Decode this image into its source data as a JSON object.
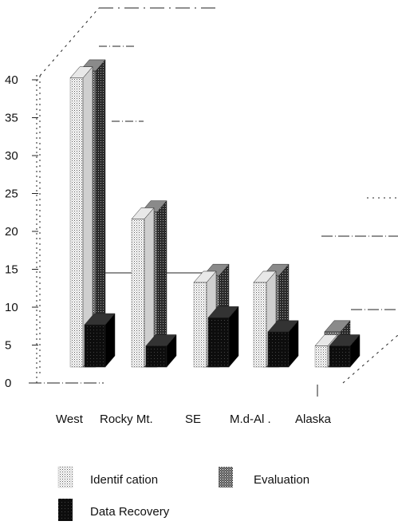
{
  "chart_data": {
    "type": "bar",
    "style": "3d-grouped-bar",
    "categories": [
      "West",
      "Rocky Mt.",
      "SE",
      "M.d-Al .",
      "Alaska"
    ],
    "series": [
      {
        "name": "Identif cation",
        "values": [
          41,
          21,
          12,
          12,
          3
        ],
        "pattern": "light-dotted"
      },
      {
        "name": "Evaluation",
        "values": [
          42,
          22,
          13,
          13,
          5
        ],
        "pattern": "medium-dotted"
      },
      {
        "name": "Data Recovery",
        "values": [
          6,
          3,
          7,
          5,
          3
        ],
        "pattern": "dark-solid"
      }
    ],
    "y_ticks": [
      "0",
      "5",
      "10",
      "15",
      "20",
      "25",
      "30",
      "35",
      "40"
    ],
    "ylim": [
      0,
      40
    ],
    "grid": false,
    "legend_position": "bottom"
  },
  "colors": {
    "axis": "#111111",
    "light": "#d8d8d8",
    "medium": "#7a7a7a",
    "dark": "#0a0a0a"
  }
}
